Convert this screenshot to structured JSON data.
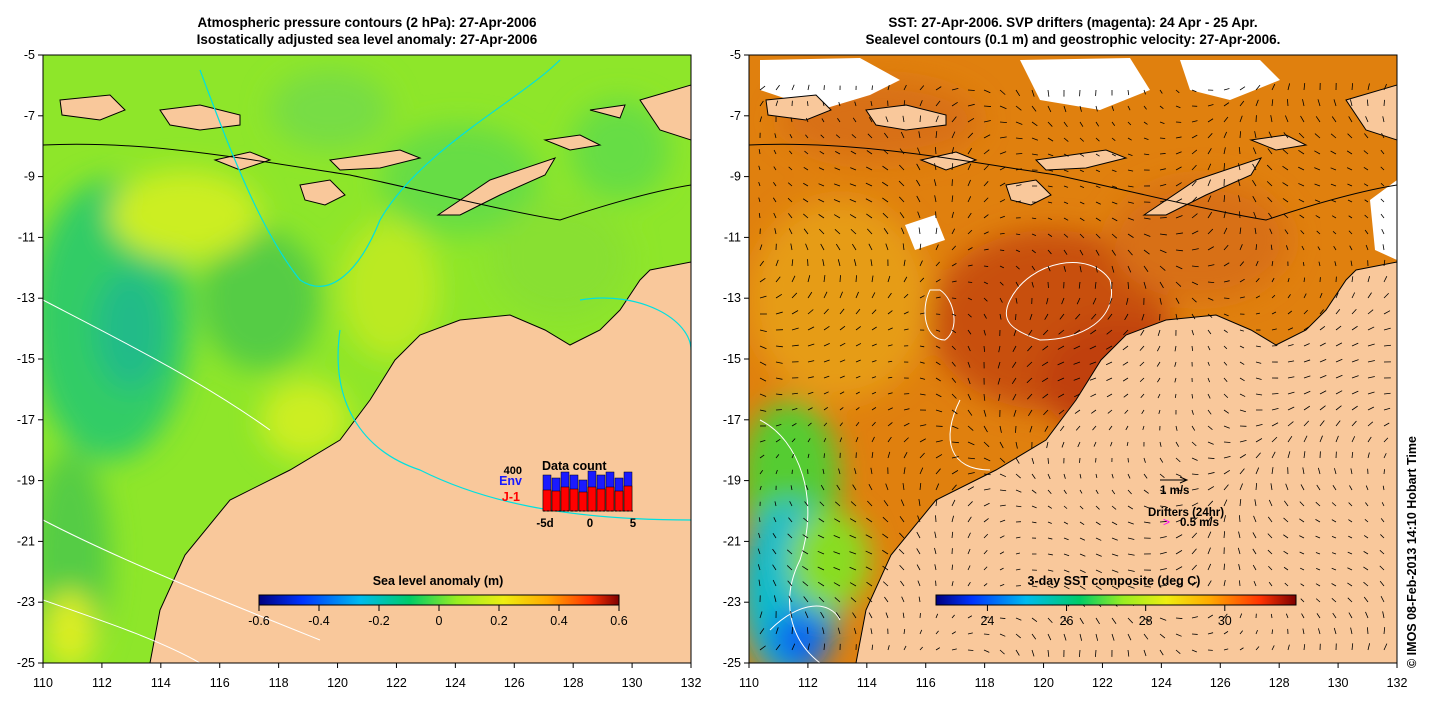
{
  "left_panel": {
    "title_line1": "Atmospheric pressure contours (2 hPa): 27-Apr-2006",
    "title_line2": "Isostatically adjusted sea level anomaly: 27-Apr-2006",
    "colorbar": {
      "title": "Sea level anomaly (m)",
      "ticks": [
        "-0.6",
        "-0.4",
        "-0.2",
        "0",
        "0.2",
        "0.4",
        "0.6"
      ],
      "range": [
        -0.6,
        0.6
      ]
    },
    "data_count": {
      "title": "Data count",
      "max_label": "400",
      "env_label": "Env",
      "j1_label": "J-1",
      "axis_left": "-5d",
      "axis_mid": "0",
      "axis_right": "5",
      "env_color": "#1a1aff",
      "j1_color": "#ff0000"
    }
  },
  "right_panel": {
    "title_line1": "SST: 27-Apr-2006. SVP drifters (magenta): 24 Apr - 25 Apr.",
    "title_line2": "Sealevel contours (0.1 m) and geostrophic velocity: 27-Apr-2006.",
    "colorbar": {
      "title": "3-day SST composite (deg C)",
      "ticks": [
        "24",
        "26",
        "28",
        "30"
      ],
      "range": [
        22.7,
        31.8
      ]
    },
    "velocity_scale": "1 m/s",
    "drifters_label": "Drifters (24hr)",
    "drifter_scale_symbol": ">",
    "drifter_scale": "0.5 m/s",
    "drifter_color": "#ff00ff"
  },
  "axes": {
    "x_ticks": [
      "110",
      "112",
      "114",
      "116",
      "118",
      "120",
      "122",
      "124",
      "126",
      "128",
      "130",
      "132"
    ],
    "y_ticks": [
      "-5",
      "-7",
      "-9",
      "-11",
      "-13",
      "-15",
      "-17",
      "-19",
      "-21",
      "-23",
      "-25"
    ],
    "lon_range": [
      110,
      132
    ],
    "lat_range": [
      -25,
      -5
    ]
  },
  "credit": "© IMOS 08-Feb-2013 14:10 Hobart Time",
  "colors": {
    "land": "#f9c89b",
    "sla_ocean": "#8ee62a",
    "sst_ocean": "#e0800e"
  }
}
